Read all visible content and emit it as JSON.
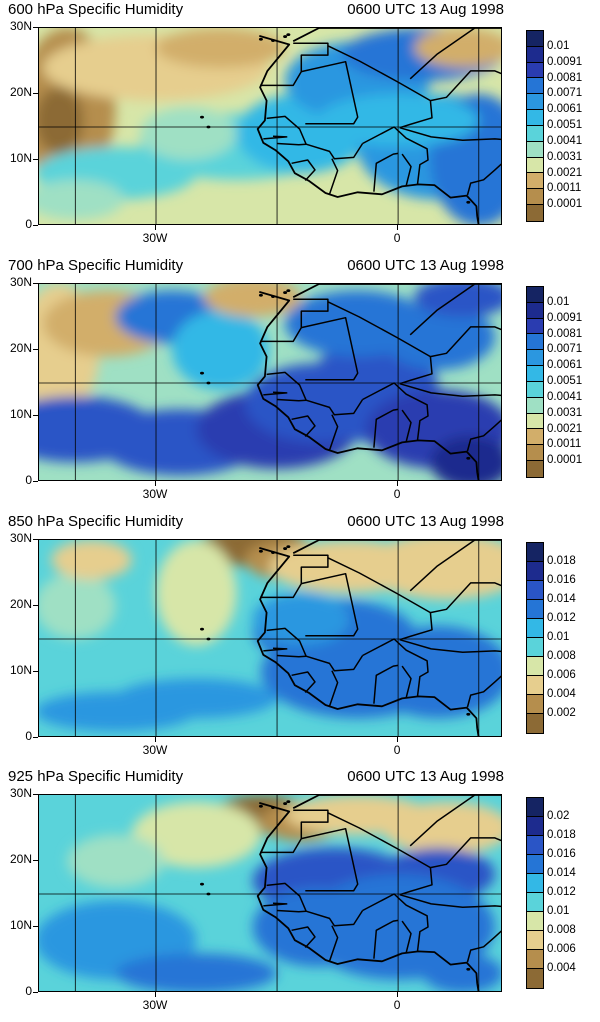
{
  "panels": [
    {
      "title_left": "600 hPa Specific Humidity",
      "title_right": "0600 UTC 13 Aug 1998",
      "colorbar": [
        "0.01",
        "0.0091",
        "0.0081",
        "0.0071",
        "0.0061",
        "0.0051",
        "0.0041",
        "0.0031",
        "0.0021",
        "0.0011",
        "0.0001"
      ],
      "field": "dry"
    },
    {
      "title_left": "700 hPa Specific Humidity",
      "title_right": "0600 UTC 13 Aug 1998",
      "colorbar": [
        "0.01",
        "0.0091",
        "0.0081",
        "0.0071",
        "0.0061",
        "0.0051",
        "0.0041",
        "0.0031",
        "0.0021",
        "0.0011",
        "0.0001"
      ],
      "field": "moist"
    },
    {
      "title_left": "850 hPa Specific Humidity",
      "title_right": "0600 UTC 13 Aug 1998",
      "colorbar": [
        "0.018",
        "0.016",
        "0.014",
        "0.012",
        "0.01",
        "0.008",
        "0.006",
        "0.004",
        "0.002"
      ],
      "field": "low"
    },
    {
      "title_left": "925 hPa Specific Humidity",
      "title_right": "0600 UTC 13 Aug 1998",
      "colorbar": [
        "0.02",
        "0.018",
        "0.016",
        "0.014",
        "0.012",
        "0.01",
        "0.008",
        "0.006",
        "0.004"
      ],
      "field": "surface"
    }
  ],
  "axes": {
    "lat_labels": [
      "30N",
      "20N",
      "10N",
      "0"
    ],
    "lon_labels": [
      "30W",
      "0"
    ]
  },
  "palette": [
    "#8c6a35",
    "#b58e4d",
    "#d2ae6a",
    "#e6ce8e",
    "#d7e6a8",
    "#9fe0c4",
    "#5ad3da",
    "#33b8e6",
    "#2b97e0",
    "#2575d6",
    "#2a55c6",
    "#2a3cb0",
    "#1d2b8e",
    "#152463"
  ]
}
